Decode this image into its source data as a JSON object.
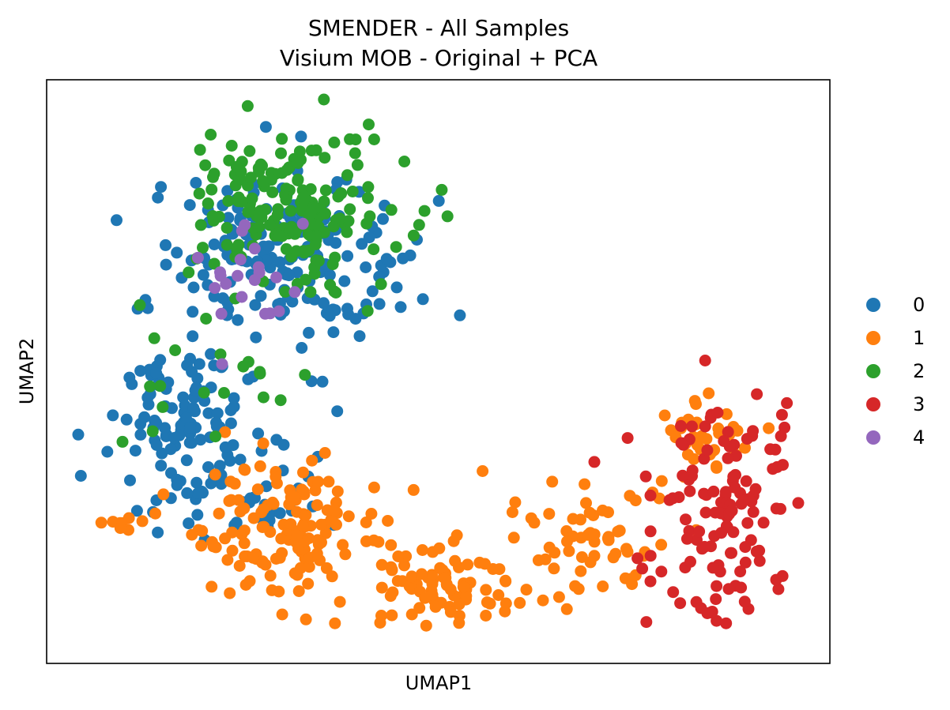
{
  "chart_data": {
    "type": "scatter",
    "title": "SMENDER - All Samples",
    "subtitle": "Visium MOB - Original + PCA",
    "xlabel": "UMAP1",
    "ylabel": "UMAP2",
    "xlim": [
      0,
      100
    ],
    "ylim": [
      0,
      100
    ],
    "grid": false,
    "x_ticks_shown": false,
    "y_ticks_shown": false,
    "legend": {
      "placement": "right",
      "entries": [
        "0",
        "1",
        "2",
        "3",
        "4"
      ]
    },
    "series": [
      {
        "name": "0",
        "color": "#1f77b4",
        "count": 320,
        "regions": [
          {
            "cx": 28,
            "cy": 70,
            "sx": 8.5,
            "sy": 8,
            "n": 175
          },
          {
            "cx": 15,
            "cy": 40,
            "sx": 5,
            "sy": 8,
            "n": 110
          },
          {
            "cx": 23,
            "cy": 25,
            "sx": 6,
            "sy": 5,
            "n": 35
          }
        ]
      },
      {
        "name": "1",
        "color": "#ff7f0e",
        "count": 330,
        "regions": [
          {
            "cx": 30,
            "cy": 18,
            "sx": 6,
            "sy": 6,
            "n": 140
          },
          {
            "cx": 50,
            "cy": 8,
            "sx": 8,
            "sy": 3.5,
            "n": 90
          },
          {
            "cx": 72,
            "cy": 17,
            "sx": 6,
            "sy": 6,
            "n": 55
          },
          {
            "cx": 86,
            "cy": 37,
            "sx": 4,
            "sy": 4,
            "n": 35
          },
          {
            "cx": 7,
            "cy": 19,
            "sx": 2.5,
            "sy": 2,
            "n": 10
          }
        ]
      },
      {
        "name": "2",
        "color": "#2ca02c",
        "count": 210,
        "regions": [
          {
            "cx": 31,
            "cy": 80,
            "sx": 8,
            "sy": 8,
            "n": 190
          },
          {
            "cx": 13,
            "cy": 44,
            "sx": 3,
            "sy": 8,
            "n": 12
          },
          {
            "cx": 24,
            "cy": 47,
            "sx": 2.5,
            "sy": 3,
            "n": 8
          }
        ]
      },
      {
        "name": "3",
        "color": "#d62728",
        "count": 130,
        "regions": [
          {
            "cx": 89,
            "cy": 22,
            "sx": 5,
            "sy": 11,
            "n": 130
          }
        ]
      },
      {
        "name": "4",
        "color": "#9467bd",
        "count": 22,
        "regions": [
          {
            "cx": 24,
            "cy": 66,
            "sx": 4,
            "sy": 6,
            "n": 22
          }
        ]
      }
    ]
  }
}
